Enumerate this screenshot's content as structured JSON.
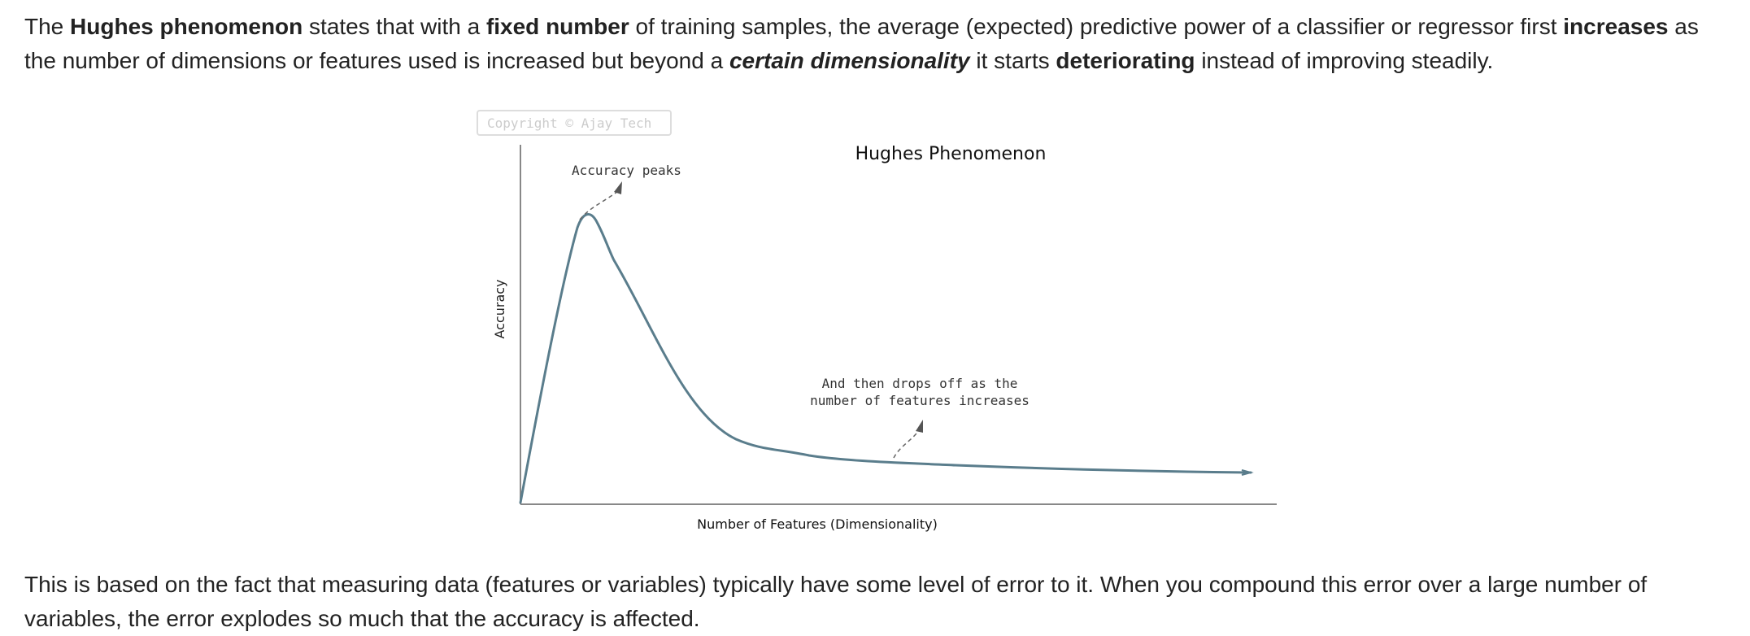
{
  "intro": {
    "t1": "The ",
    "b1": "Hughes phenomenon",
    "t2": " states that with a ",
    "b2": "fixed number",
    "t3": " of training samples, the average (expected) predictive power of a classifier or regressor first ",
    "b3": "increases",
    "t4": " as the number of dimensions or features used is increased but beyond a ",
    "bi1": "certain dimensionality",
    "t5": " it starts ",
    "b4": "deteriorating",
    "t6": " instead of improving steadily."
  },
  "figure": {
    "watermark": "Copyright © Ajay Tech",
    "title": "Hughes Phenomenon",
    "ylabel": "Accuracy",
    "xlabel": "Number of Features (Dimensionality)",
    "annotation_peak": "Accuracy peaks",
    "annotation_drop_line1": "And then drops off as the",
    "annotation_drop_line2": "number of features increases",
    "line_color": "#5a7d8c",
    "axis_color": "#888888"
  },
  "outro": {
    "text": "This is based on the fact that measuring data (features or variables) typically have some level of error to it. When you compound this error over a large number of variables, the error explodes so much that the accuracy is affected."
  }
}
